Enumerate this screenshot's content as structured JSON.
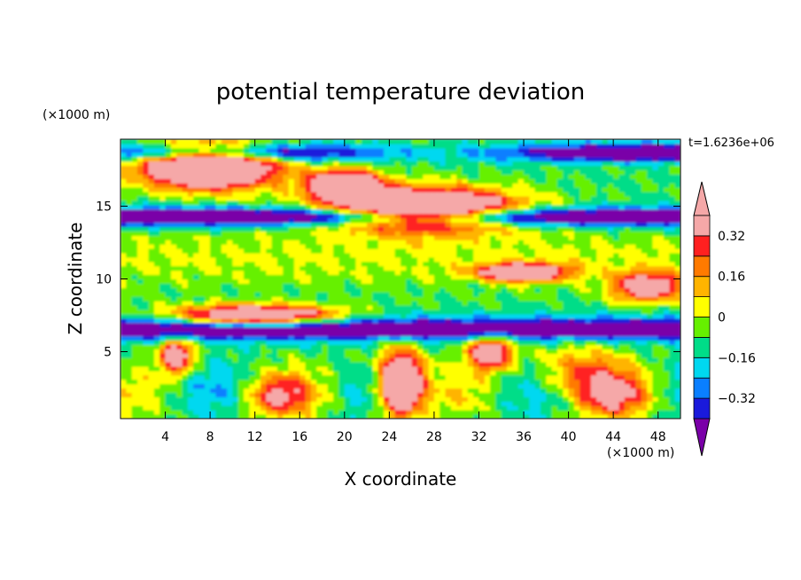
{
  "chart_data": {
    "type": "heatmap",
    "title": "potential temperature deviation",
    "xlabel": "X coordinate",
    "ylabel": "Z coordinate",
    "x_unit": "(×1000 m)",
    "y_unit": "(×1000 m)",
    "time_label": "t=1.6236e+06",
    "xlim": [
      0,
      50
    ],
    "ylim": [
      0.4,
      19.6
    ],
    "x_ticks": [
      4,
      8,
      12,
      16,
      20,
      24,
      28,
      32,
      36,
      40,
      44,
      48
    ],
    "y_ticks": [
      5,
      10,
      15
    ],
    "colorbar": {
      "levels": [
        -0.4,
        -0.32,
        -0.24,
        -0.16,
        -0.08,
        0,
        0.08,
        0.16,
        0.24,
        0.32,
        0.4
      ],
      "labels": [
        "0.32",
        "0.16",
        "0",
        "−0.16",
        "−0.32"
      ],
      "label_values": [
        0.32,
        0.16,
        0,
        -0.16,
        -0.32
      ],
      "colors": [
        "#7a00a8",
        "#1a1adc",
        "#0a7fff",
        "#00d8f0",
        "#00dd88",
        "#66f000",
        "#ffff00",
        "#ffb400",
        "#ff7a00",
        "#ff2020",
        "#f5a8a8"
      ],
      "extend": "both"
    }
  }
}
